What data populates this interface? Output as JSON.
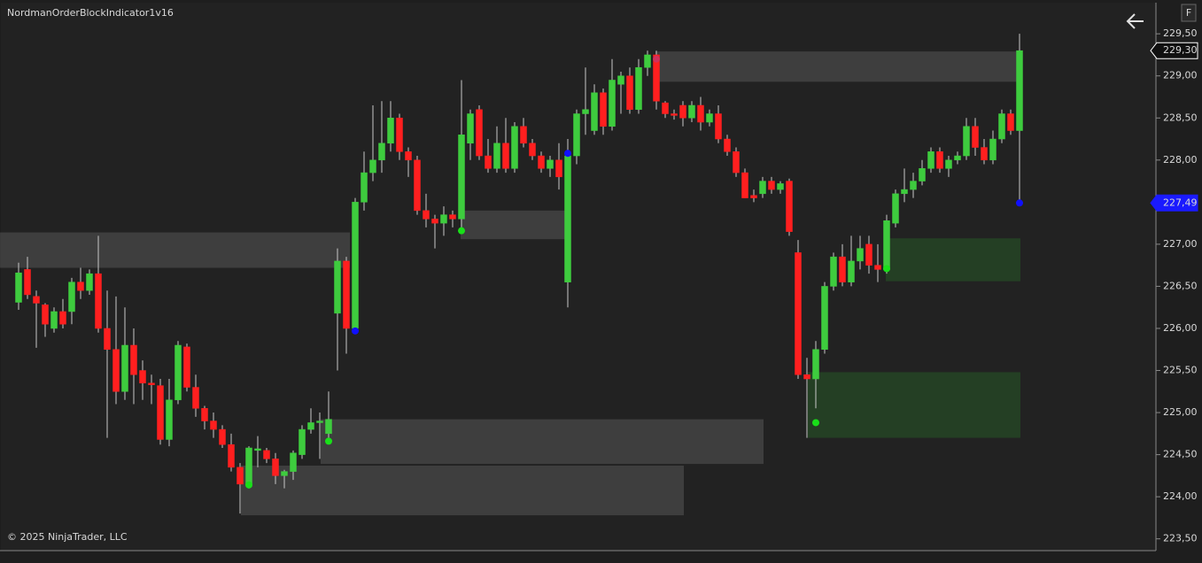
{
  "chart_data": {
    "type": "candlestick",
    "title": "NordmanOrderBlockIndicator1v16",
    "footer": "© 2025 NinjaTrader, LLC",
    "button": "F",
    "up_color": "#3ecc3e",
    "down_color": "#ff1f1f",
    "categories": [
      null,
      null,
      null,
      null,
      null,
      null,
      null,
      null,
      null,
      null,
      null,
      null,
      null,
      null,
      null,
      null,
      null,
      null,
      null,
      null,
      null,
      null,
      null,
      null,
      null,
      null,
      null,
      null,
      null,
      null,
      null,
      null,
      null,
      null,
      null,
      null,
      null,
      null,
      null,
      null,
      null,
      null,
      null,
      null,
      null,
      null,
      null,
      null,
      null,
      null,
      null,
      null,
      null,
      null,
      null,
      null,
      null,
      null,
      null,
      null,
      null,
      null,
      null,
      null,
      null,
      null,
      null,
      null,
      null,
      null,
      null,
      null,
      null,
      null,
      null,
      null,
      null,
      null,
      null,
      null,
      null,
      null,
      null,
      null,
      null,
      null,
      null,
      null,
      null,
      null,
      null,
      null,
      null,
      null,
      null,
      null,
      null,
      null,
      null,
      null,
      null,
      null,
      null,
      null,
      null,
      null,
      null,
      null,
      null,
      null,
      null,
      null,
      null,
      null
    ],
    "open": [
      226.31,
      226.7,
      226.38,
      226.28,
      226.0,
      226.2,
      226.2,
      226.55,
      226.45,
      226.65,
      226.0,
      225.75,
      225.25,
      225.8,
      225.5,
      225.35,
      225.32,
      224.68,
      225.15,
      225.78,
      225.3,
      225.05,
      224.9,
      224.8,
      224.62,
      224.35,
      224.15,
      224.55,
      224.55,
      224.45,
      224.25,
      224.3,
      224.5,
      224.8,
      224.88,
      224.75,
      226.18,
      226.8,
      226.0,
      227.5,
      227.85,
      228.0,
      228.2,
      228.5,
      228.1,
      228.0,
      227.4,
      227.3,
      227.25,
      227.35,
      227.3,
      228.2,
      228.6,
      228.05,
      227.9,
      228.2,
      227.9,
      228.4,
      228.2,
      228.05,
      227.9,
      228.0,
      226.55,
      228.05,
      228.55,
      228.35,
      228.8,
      228.4,
      228.9,
      229.0,
      228.6,
      229.1,
      229.25,
      228.68,
      228.55,
      228.65,
      228.5,
      228.65,
      228.45,
      228.55,
      228.25,
      228.1,
      227.85,
      227.58,
      227.6,
      227.75,
      227.65,
      227.75,
      226.9,
      225.45,
      225.4,
      225.75,
      226.5,
      226.85,
      226.55,
      226.8,
      227.0,
      226.75,
      226.7,
      227.25,
      227.6,
      227.65,
      227.75,
      227.9,
      228.1,
      227.9,
      228.0,
      228.05,
      228.4,
      228.15,
      228.0,
      228.25,
      228.55,
      228.35
    ],
    "high": [
      226.78,
      226.85,
      226.45,
      226.3,
      226.25,
      226.35,
      226.6,
      226.72,
      226.7,
      227.1,
      226.45,
      226.38,
      226.25,
      226.0,
      225.62,
      225.45,
      225.4,
      225.4,
      225.85,
      225.82,
      225.45,
      225.08,
      225.0,
      224.85,
      224.75,
      224.4,
      224.6,
      224.72,
      224.58,
      224.52,
      224.32,
      224.55,
      224.85,
      225.05,
      225.0,
      225.25,
      226.95,
      226.85,
      227.55,
      228.1,
      228.65,
      228.7,
      228.7,
      228.55,
      228.15,
      228.05,
      227.6,
      227.35,
      227.45,
      227.4,
      228.95,
      228.6,
      228.65,
      228.25,
      228.4,
      228.5,
      228.45,
      228.5,
      228.25,
      228.1,
      228.05,
      228.2,
      228.25,
      228.6,
      229.1,
      228.9,
      228.85,
      229.2,
      229.05,
      229.1,
      229.2,
      229.3,
      229.3,
      228.7,
      228.6,
      228.7,
      228.7,
      228.75,
      228.6,
      228.65,
      228.3,
      228.15,
      227.9,
      227.65,
      227.8,
      227.8,
      227.75,
      227.78,
      227.05,
      225.65,
      225.85,
      226.55,
      226.9,
      227.0,
      227.1,
      227.1,
      227.1,
      227.0,
      227.35,
      227.65,
      227.9,
      227.85,
      228.0,
      228.15,
      228.15,
      228.05,
      228.1,
      228.5,
      228.5,
      228.25,
      228.35,
      228.6,
      228.6,
      229.5
    ],
    "low": [
      226.22,
      226.35,
      225.77,
      225.9,
      225.95,
      226.0,
      226.05,
      226.35,
      226.4,
      225.95,
      224.7,
      225.1,
      225.15,
      225.1,
      225.15,
      225.1,
      224.62,
      224.6,
      225.1,
      225.25,
      224.95,
      224.8,
      224.7,
      224.58,
      224.3,
      223.8,
      224.1,
      224.35,
      224.4,
      224.15,
      224.1,
      224.2,
      224.45,
      224.75,
      224.45,
      224.7,
      225.5,
      225.7,
      225.95,
      227.4,
      227.75,
      227.85,
      228.1,
      228.0,
      227.8,
      227.35,
      227.2,
      226.95,
      227.1,
      227.2,
      227.2,
      228.0,
      228.0,
      227.85,
      227.85,
      227.85,
      227.85,
      228.15,
      228.0,
      227.85,
      227.8,
      227.65,
      226.25,
      227.95,
      228.3,
      228.3,
      228.3,
      228.35,
      228.55,
      228.55,
      228.55,
      229.0,
      228.6,
      228.5,
      228.48,
      228.4,
      228.45,
      228.35,
      228.4,
      228.2,
      228.05,
      227.8,
      227.55,
      227.5,
      227.55,
      227.6,
      227.6,
      227.1,
      225.4,
      224.7,
      225.05,
      225.7,
      226.45,
      226.5,
      226.5,
      226.7,
      226.65,
      226.55,
      226.65,
      227.2,
      227.5,
      227.55,
      227.7,
      227.85,
      227.85,
      227.8,
      227.95,
      228.0,
      228.05,
      227.95,
      227.95,
      228.2,
      228.3,
      227.5
    ],
    "close": [
      226.66,
      226.4,
      226.3,
      226.05,
      226.2,
      226.05,
      226.55,
      226.45,
      226.65,
      226.0,
      225.75,
      225.25,
      225.8,
      225.45,
      225.35,
      225.33,
      224.68,
      225.15,
      225.8,
      225.3,
      225.05,
      224.9,
      224.8,
      224.62,
      224.35,
      224.15,
      224.58,
      224.57,
      224.45,
      224.25,
      224.3,
      224.52,
      224.8,
      224.88,
      224.9,
      224.92,
      226.8,
      226.0,
      227.5,
      227.85,
      228.0,
      228.2,
      228.5,
      228.1,
      228.0,
      227.4,
      227.3,
      227.25,
      227.35,
      227.3,
      228.3,
      228.55,
      228.05,
      227.9,
      228.2,
      227.9,
      228.4,
      228.2,
      228.05,
      227.9,
      228.0,
      227.8,
      228.05,
      228.55,
      228.6,
      228.8,
      228.4,
      228.95,
      229.0,
      228.6,
      229.1,
      229.25,
      228.7,
      228.55,
      228.53,
      228.5,
      228.65,
      228.45,
      228.55,
      228.25,
      228.1,
      227.85,
      227.55,
      227.55,
      227.75,
      227.65,
      227.72,
      227.15,
      225.45,
      225.4,
      225.75,
      226.5,
      226.85,
      226.55,
      226.8,
      226.95,
      226.75,
      226.7,
      227.28,
      227.6,
      227.65,
      227.75,
      227.9,
      228.1,
      227.9,
      228.0,
      228.05,
      228.4,
      228.15,
      228.0,
      228.25,
      228.55,
      228.35,
      229.3
    ],
    "zones": [
      {
        "start": -2.1,
        "end": 37.4,
        "top": 227.14,
        "bottom": 226.72,
        "color": "rgba(128,128,128,0.3)"
      },
      {
        "start": 49.9,
        "end": 61.9,
        "top": 227.4,
        "bottom": 227.06,
        "color": "rgba(128,128,128,0.3)"
      },
      {
        "start": 71.9,
        "end": 112.9,
        "top": 229.29,
        "bottom": 228.93,
        "color": "rgba(128,128,128,0.3)"
      },
      {
        "start": 34.1,
        "end": 84.1,
        "top": 224.92,
        "bottom": 224.39,
        "color": "rgba(128,128,128,0.3)"
      },
      {
        "start": 25.1,
        "end": 75.1,
        "top": 224.37,
        "bottom": 223.78,
        "color": "rgba(128,128,128,0.3)"
      },
      {
        "start": 97.9,
        "end": 113.1,
        "top": 227.07,
        "bottom": 226.56,
        "color": "rgba(40,100,40,0.45)"
      },
      {
        "start": 89.1,
        "end": 113.1,
        "top": 225.48,
        "bottom": 224.7,
        "color": "rgba(40,100,40,0.45)"
      }
    ],
    "markers": [
      {
        "index": 26,
        "value": 224.14,
        "color": "#19e019"
      },
      {
        "index": 35,
        "value": 224.66,
        "color": "#19e019"
      },
      {
        "index": 50,
        "value": 227.16,
        "color": "#19e019"
      },
      {
        "index": 90,
        "value": 224.88,
        "color": "#19e019"
      },
      {
        "index": 98,
        "value": 226.71,
        "color": "#19e019"
      },
      {
        "index": 38,
        "value": 225.97,
        "color": "#1010ff"
      },
      {
        "index": 62,
        "value": 228.08,
        "color": "#1010ff"
      },
      {
        "index": 113,
        "value": 227.49,
        "color": "#1010ff"
      },
      {
        "index": 72,
        "value": 229.2,
        "color": "#d0305a"
      }
    ],
    "price_tags": [
      {
        "value": 229.3,
        "label": "229,30",
        "color": "#111111",
        "border": "#ffffff"
      },
      {
        "value": 227.49,
        "label": "227,49",
        "color": "#1a1aff",
        "border": "#1a1aff"
      }
    ],
    "ylim": [
      223.36,
      229.87
    ],
    "yticks": [
      {
        "value": 223.5,
        "label": "223,50"
      },
      {
        "value": 224.0,
        "label": "224,00"
      },
      {
        "value": 224.5,
        "label": "224,50"
      },
      {
        "value": 225.0,
        "label": "225,00"
      },
      {
        "value": 225.5,
        "label": "225,50"
      },
      {
        "value": 226.0,
        "label": "226,00"
      },
      {
        "value": 226.5,
        "label": "226,50"
      },
      {
        "value": 227.0,
        "label": "227,00"
      },
      {
        "value": 227.5,
        "label": "227,50"
      },
      {
        "value": 228.0,
        "label": "228,00"
      },
      {
        "value": 228.5,
        "label": "228,50"
      },
      {
        "value": 229.0,
        "label": "229,00"
      },
      {
        "value": 229.5,
        "label": "229,50"
      }
    ]
  }
}
